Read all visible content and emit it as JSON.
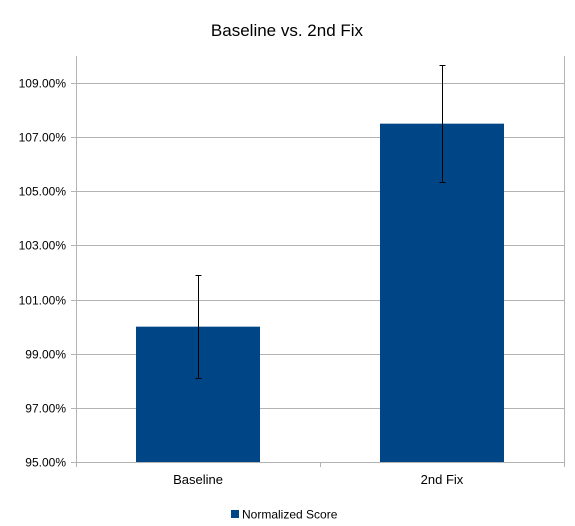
{
  "chart_data": {
    "type": "bar",
    "title": "Baseline vs. 2nd Fix",
    "categories": [
      "Baseline",
      "2nd Fix"
    ],
    "series": [
      {
        "name": "Normalized Score",
        "values": [
          100.0,
          107.5
        ],
        "error": [
          1.9,
          2.15
        ],
        "color": "#004586"
      }
    ],
    "ylim": [
      95,
      110
    ],
    "yticks": [
      95,
      97,
      99,
      101,
      103,
      105,
      107,
      109
    ],
    "ytick_labels": [
      "95.00%",
      "97.00%",
      "99.00%",
      "101.00%",
      "103.00%",
      "105.00%",
      "107.00%",
      "109.00%"
    ],
    "grid": true,
    "legend": "bottom"
  }
}
